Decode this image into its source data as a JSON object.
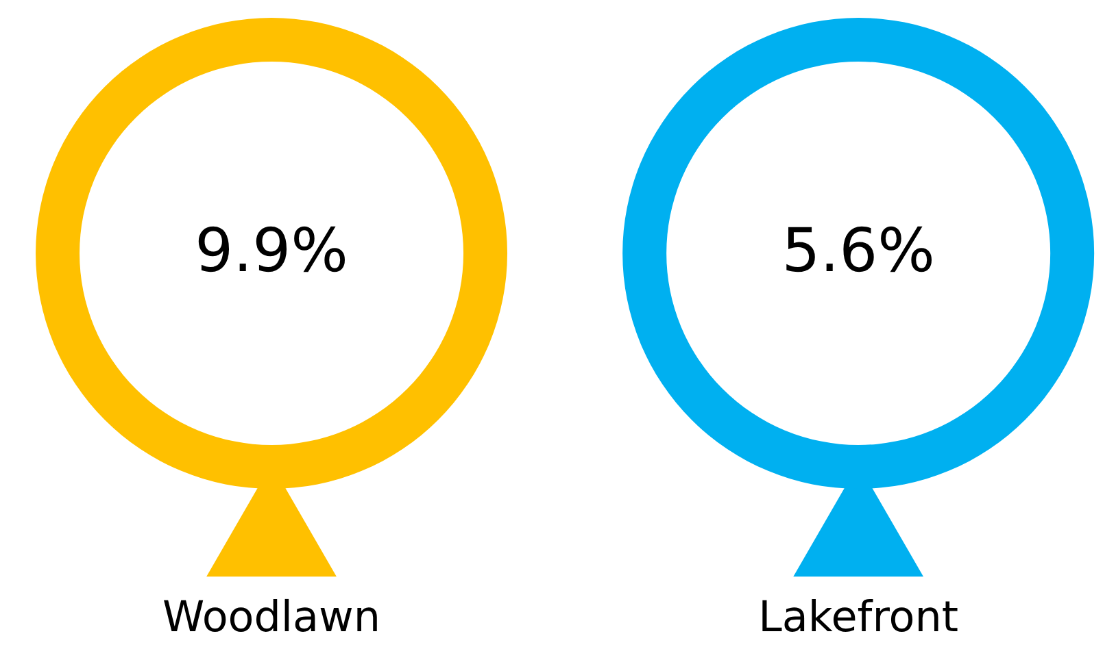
{
  "chart_data": {
    "type": "other",
    "categories": [
      "Woodlawn",
      "Lakefront"
    ],
    "values": [
      9.9,
      5.6
    ],
    "value_labels": [
      "9.9%",
      "5.6%"
    ],
    "colors": [
      "#ffc000",
      "#00b0f0"
    ]
  }
}
